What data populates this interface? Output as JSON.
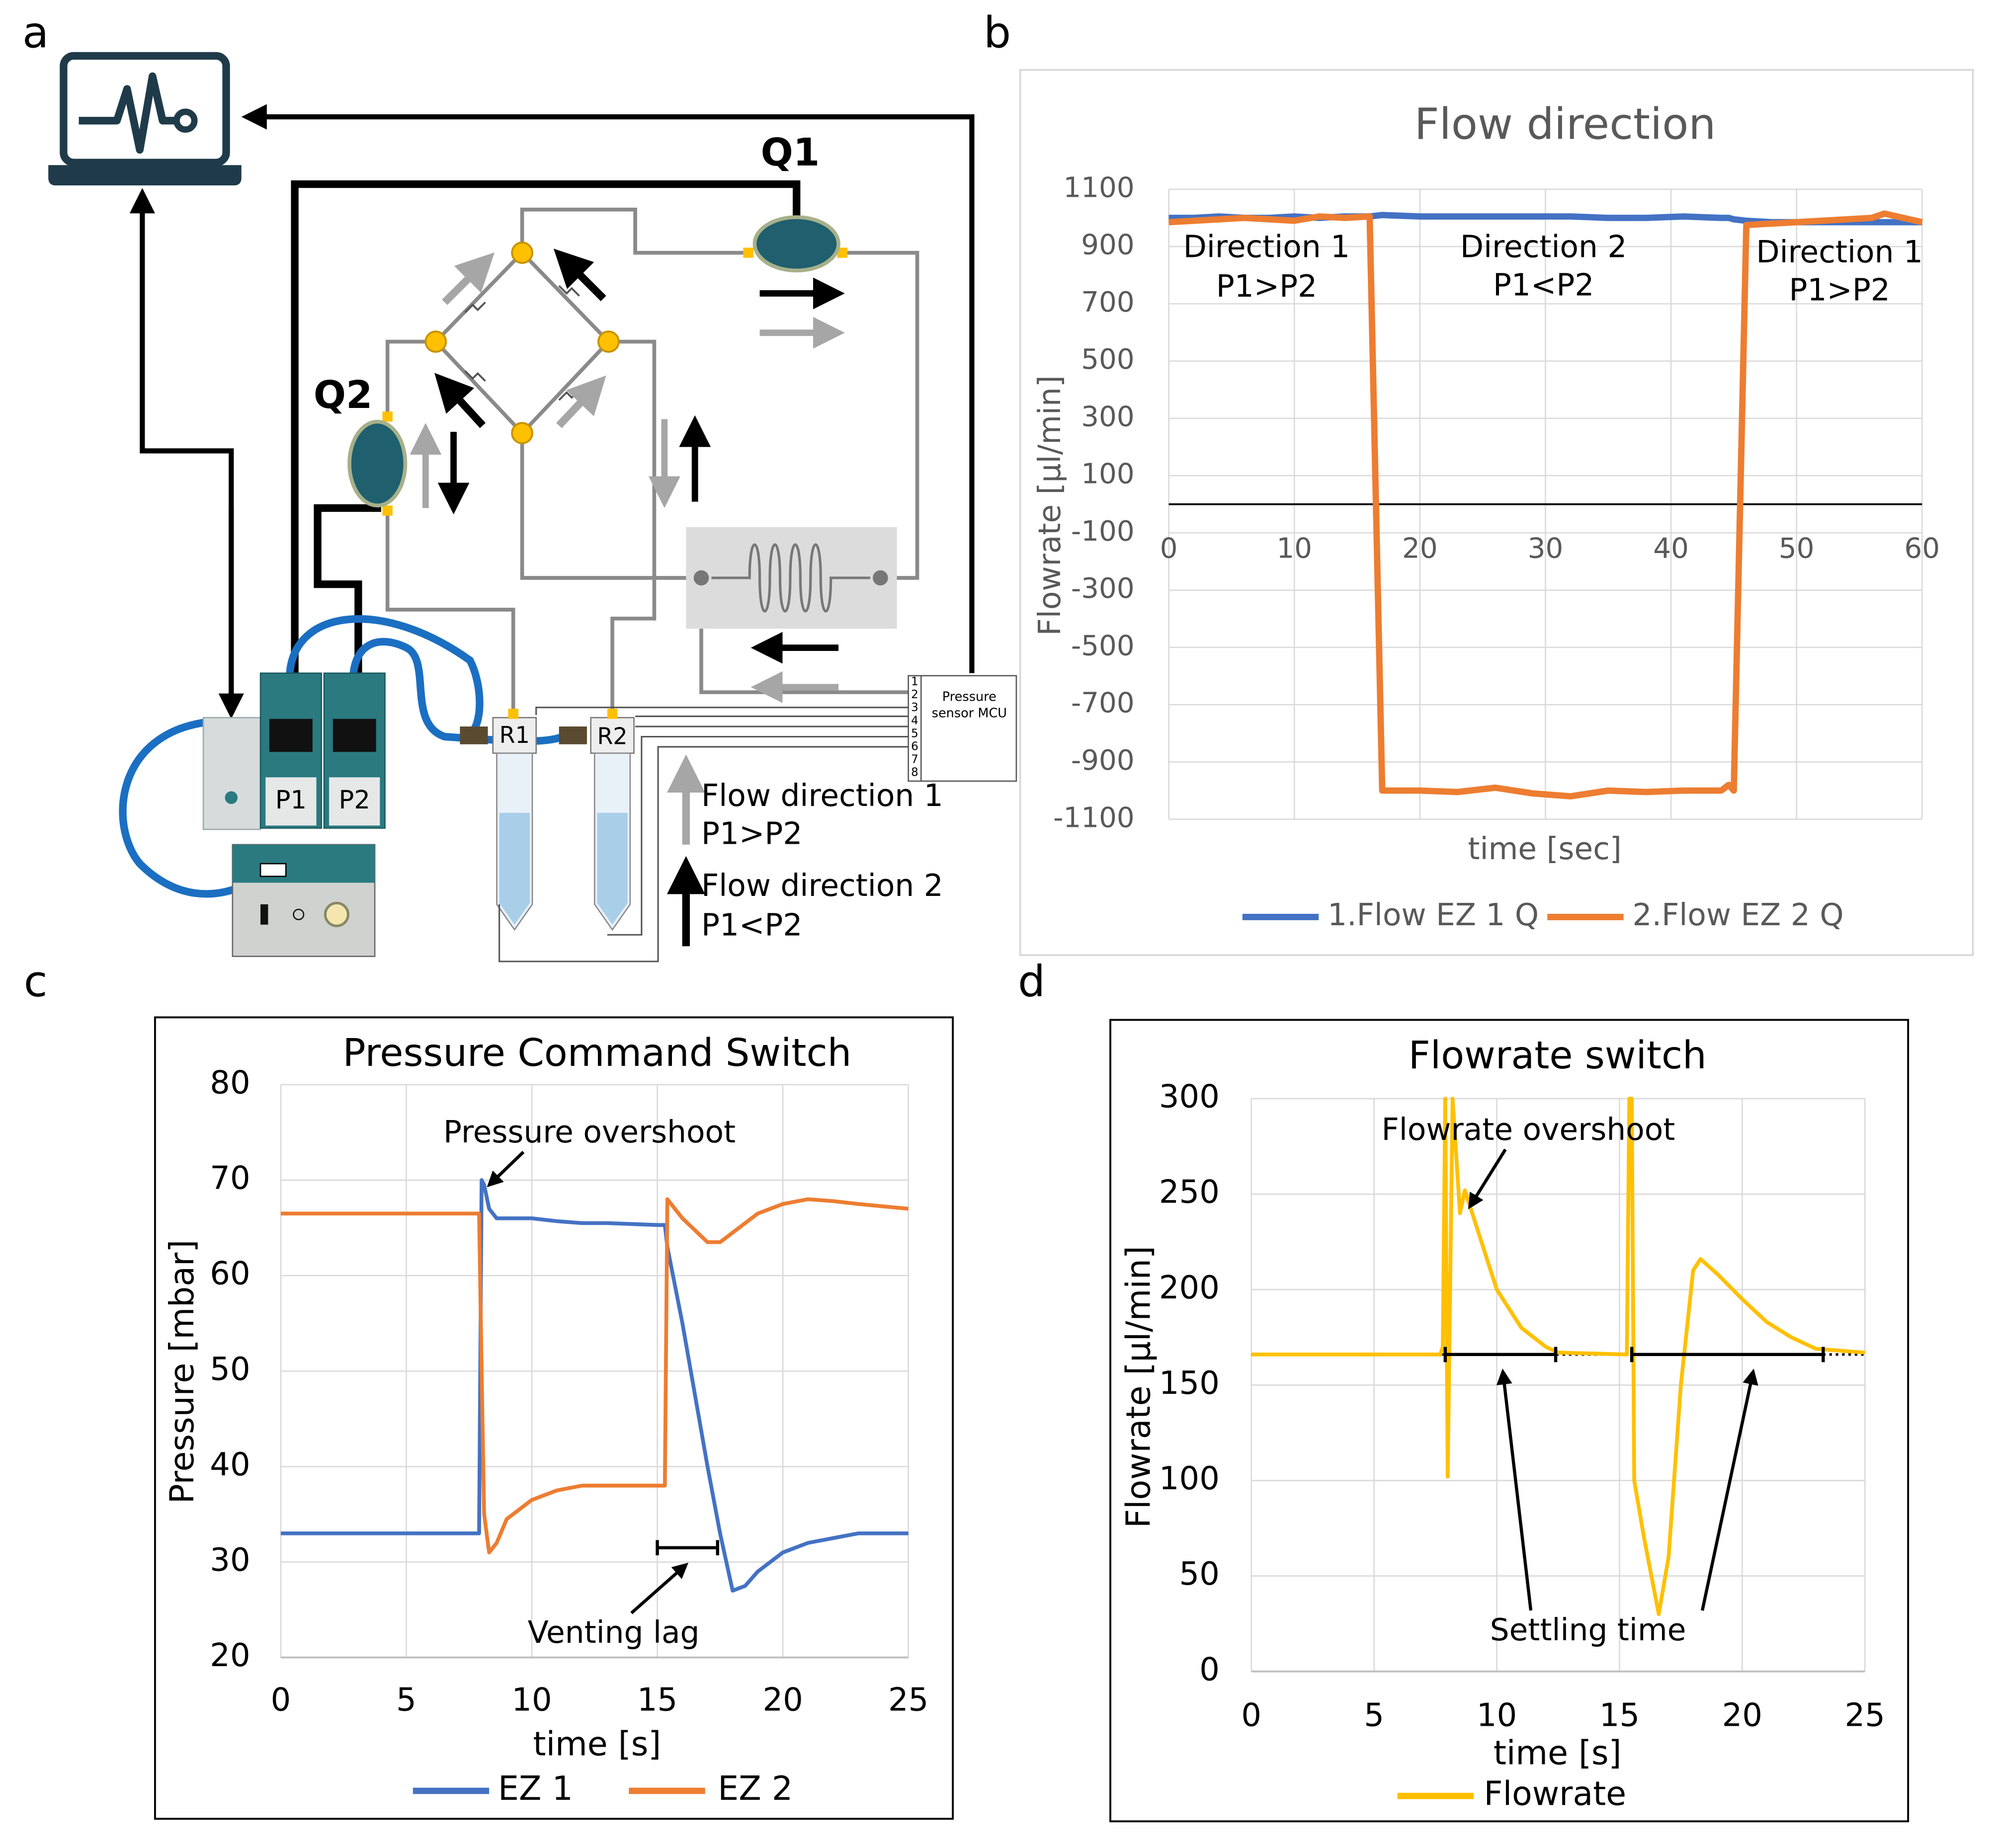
{
  "panels": [
    "a",
    "b",
    "c",
    "d"
  ],
  "diagram": {
    "q1": "Q1",
    "q2": "Q2",
    "r1": "R1",
    "r2": "R2",
    "p1": "P1",
    "p2": "P2",
    "mcu_label": [
      "Pressure",
      "sensor MCU"
    ],
    "ports": [
      "1",
      "2",
      "3",
      "4",
      "5",
      "6",
      "7",
      "8"
    ],
    "legend": [
      "Flow direction 1",
      "P1>P2",
      "Flow direction 2",
      "P1<P2"
    ]
  },
  "chart_data": [
    {
      "type": "line",
      "title": "Flow direction",
      "x_label": "time [sec]",
      "y_label": "Flowrate [µl/min]",
      "x": [
        0,
        2,
        4,
        6,
        8,
        10,
        12,
        14,
        16,
        17,
        20,
        23,
        26,
        29,
        32,
        35,
        38,
        41,
        44,
        44.6,
        45,
        46,
        48,
        50,
        52,
        54,
        56,
        57,
        58,
        60
      ],
      "series": [
        {
          "name": "1.Flow EZ 1 Q",
          "color": "#4472c4",
          "values": [
            1000,
            1000,
            1005,
            1000,
            1000,
            1005,
            1000,
            1005,
            1005,
            1010,
            1005,
            1005,
            1005,
            1005,
            1005,
            1000,
            1000,
            1005,
            1000,
            1000,
            995,
            990,
            985,
            985,
            985,
            985,
            985,
            985,
            985,
            985
          ]
        },
        {
          "name": "2.Flow EZ 2 Q",
          "color": "#ed7d31",
          "values": [
            985,
            990,
            995,
            1000,
            995,
            990,
            1005,
            1000,
            1005,
            -1000,
            -1000,
            -1005,
            -990,
            -1010,
            -1020,
            -1000,
            -1005,
            -1000,
            -1000,
            -980,
            -1000,
            975,
            980,
            985,
            990,
            995,
            1000,
            1015,
            1005,
            985
          ]
        }
      ],
      "xlim": [
        0,
        60
      ],
      "xticks": [
        0,
        10,
        20,
        30,
        40,
        50,
        60
      ],
      "ylim": [
        -1100,
        1100
      ],
      "yticks": [
        -1100,
        -900,
        -700,
        -500,
        -300,
        -100,
        100,
        300,
        500,
        700,
        900,
        1100
      ],
      "grid": true,
      "zero_line": true,
      "legend": "bottom",
      "annotations": [
        "Direction 1",
        "P1>P2",
        "Direction 2",
        "P1<P2",
        "Direction 1",
        "P1>P2"
      ]
    },
    {
      "type": "line",
      "title": "Pressure Command Switch",
      "x_label": "time [s]",
      "y_label": "Pressure  [mbar]",
      "x": [
        0,
        7.9,
        8.0,
        8.1,
        8.3,
        8.6,
        9,
        10,
        11,
        12,
        13,
        15,
        15.3,
        15.4,
        16,
        17,
        17.5,
        18,
        18.5,
        19,
        20,
        21,
        22,
        23,
        25
      ],
      "series": [
        {
          "name": "EZ 1",
          "color": "#4472c4",
          "values": [
            33,
            33,
            70,
            69.5,
            67,
            66,
            66,
            66,
            65.7,
            65.5,
            65.5,
            65.3,
            65.3,
            63,
            55,
            40,
            33,
            27,
            27.5,
            29,
            31,
            32,
            32.5,
            33,
            33
          ]
        },
        {
          "name": "EZ 2",
          "color": "#ed7d31",
          "values": [
            66.5,
            66.5,
            50,
            35,
            31,
            32,
            34.5,
            36.5,
            37.5,
            38,
            38,
            38,
            38,
            68,
            66,
            63.5,
            63.5,
            64.5,
            65.5,
            66.5,
            67.5,
            68,
            67.8,
            67.5,
            67
          ]
        }
      ],
      "xlim": [
        0,
        25
      ],
      "xticks": [
        0,
        5,
        10,
        15,
        20,
        25
      ],
      "ylim": [
        20,
        80
      ],
      "yticks": [
        20,
        30,
        40,
        50,
        60,
        70,
        80
      ],
      "grid": true,
      "legend": "bottom",
      "annotations": [
        "Pressure overshoot",
        "Venting lag"
      ],
      "interval_bars": [
        {
          "x": [
            15,
            17.4
          ],
          "y": 31.5
        }
      ]
    },
    {
      "type": "line",
      "title": "Flowrate switch",
      "x_label": "time [s]",
      "y_label": "Flowrate [µl/min]",
      "x": [
        0,
        7.7,
        7.8,
        7.9,
        8.0,
        8.2,
        8.5,
        8.7,
        9,
        10,
        11,
        12,
        12.5,
        15.3,
        15.4,
        15.5,
        15.6,
        16,
        16.6,
        17,
        17.5,
        18,
        18.3,
        19,
        20,
        21,
        22,
        23,
        25
      ],
      "series": [
        {
          "name": "Flowrate",
          "color": "#ffc000",
          "values": [
            166,
            166,
            170,
            300,
            102,
            300,
            240,
            252,
            240,
            200,
            180,
            170,
            167,
            166,
            300,
            300,
            100,
            70,
            30,
            60,
            150,
            210,
            216,
            208,
            195,
            183,
            175,
            169,
            167
          ]
        }
      ],
      "xlim": [
        0,
        25
      ],
      "xticks": [
        0,
        5,
        10,
        15,
        20,
        25
      ],
      "ylim": [
        0,
        300
      ],
      "yticks": [
        0,
        50,
        100,
        150,
        200,
        250,
        300
      ],
      "grid": true,
      "legend": "bottom",
      "reference_line": 166,
      "annotations": [
        "Flowrate overshoot",
        "Settling time"
      ],
      "interval_bars": [
        {
          "x": [
            7.9,
            12.4
          ],
          "y": 166
        },
        {
          "x": [
            15.5,
            23.3
          ],
          "y": 166
        }
      ]
    }
  ]
}
